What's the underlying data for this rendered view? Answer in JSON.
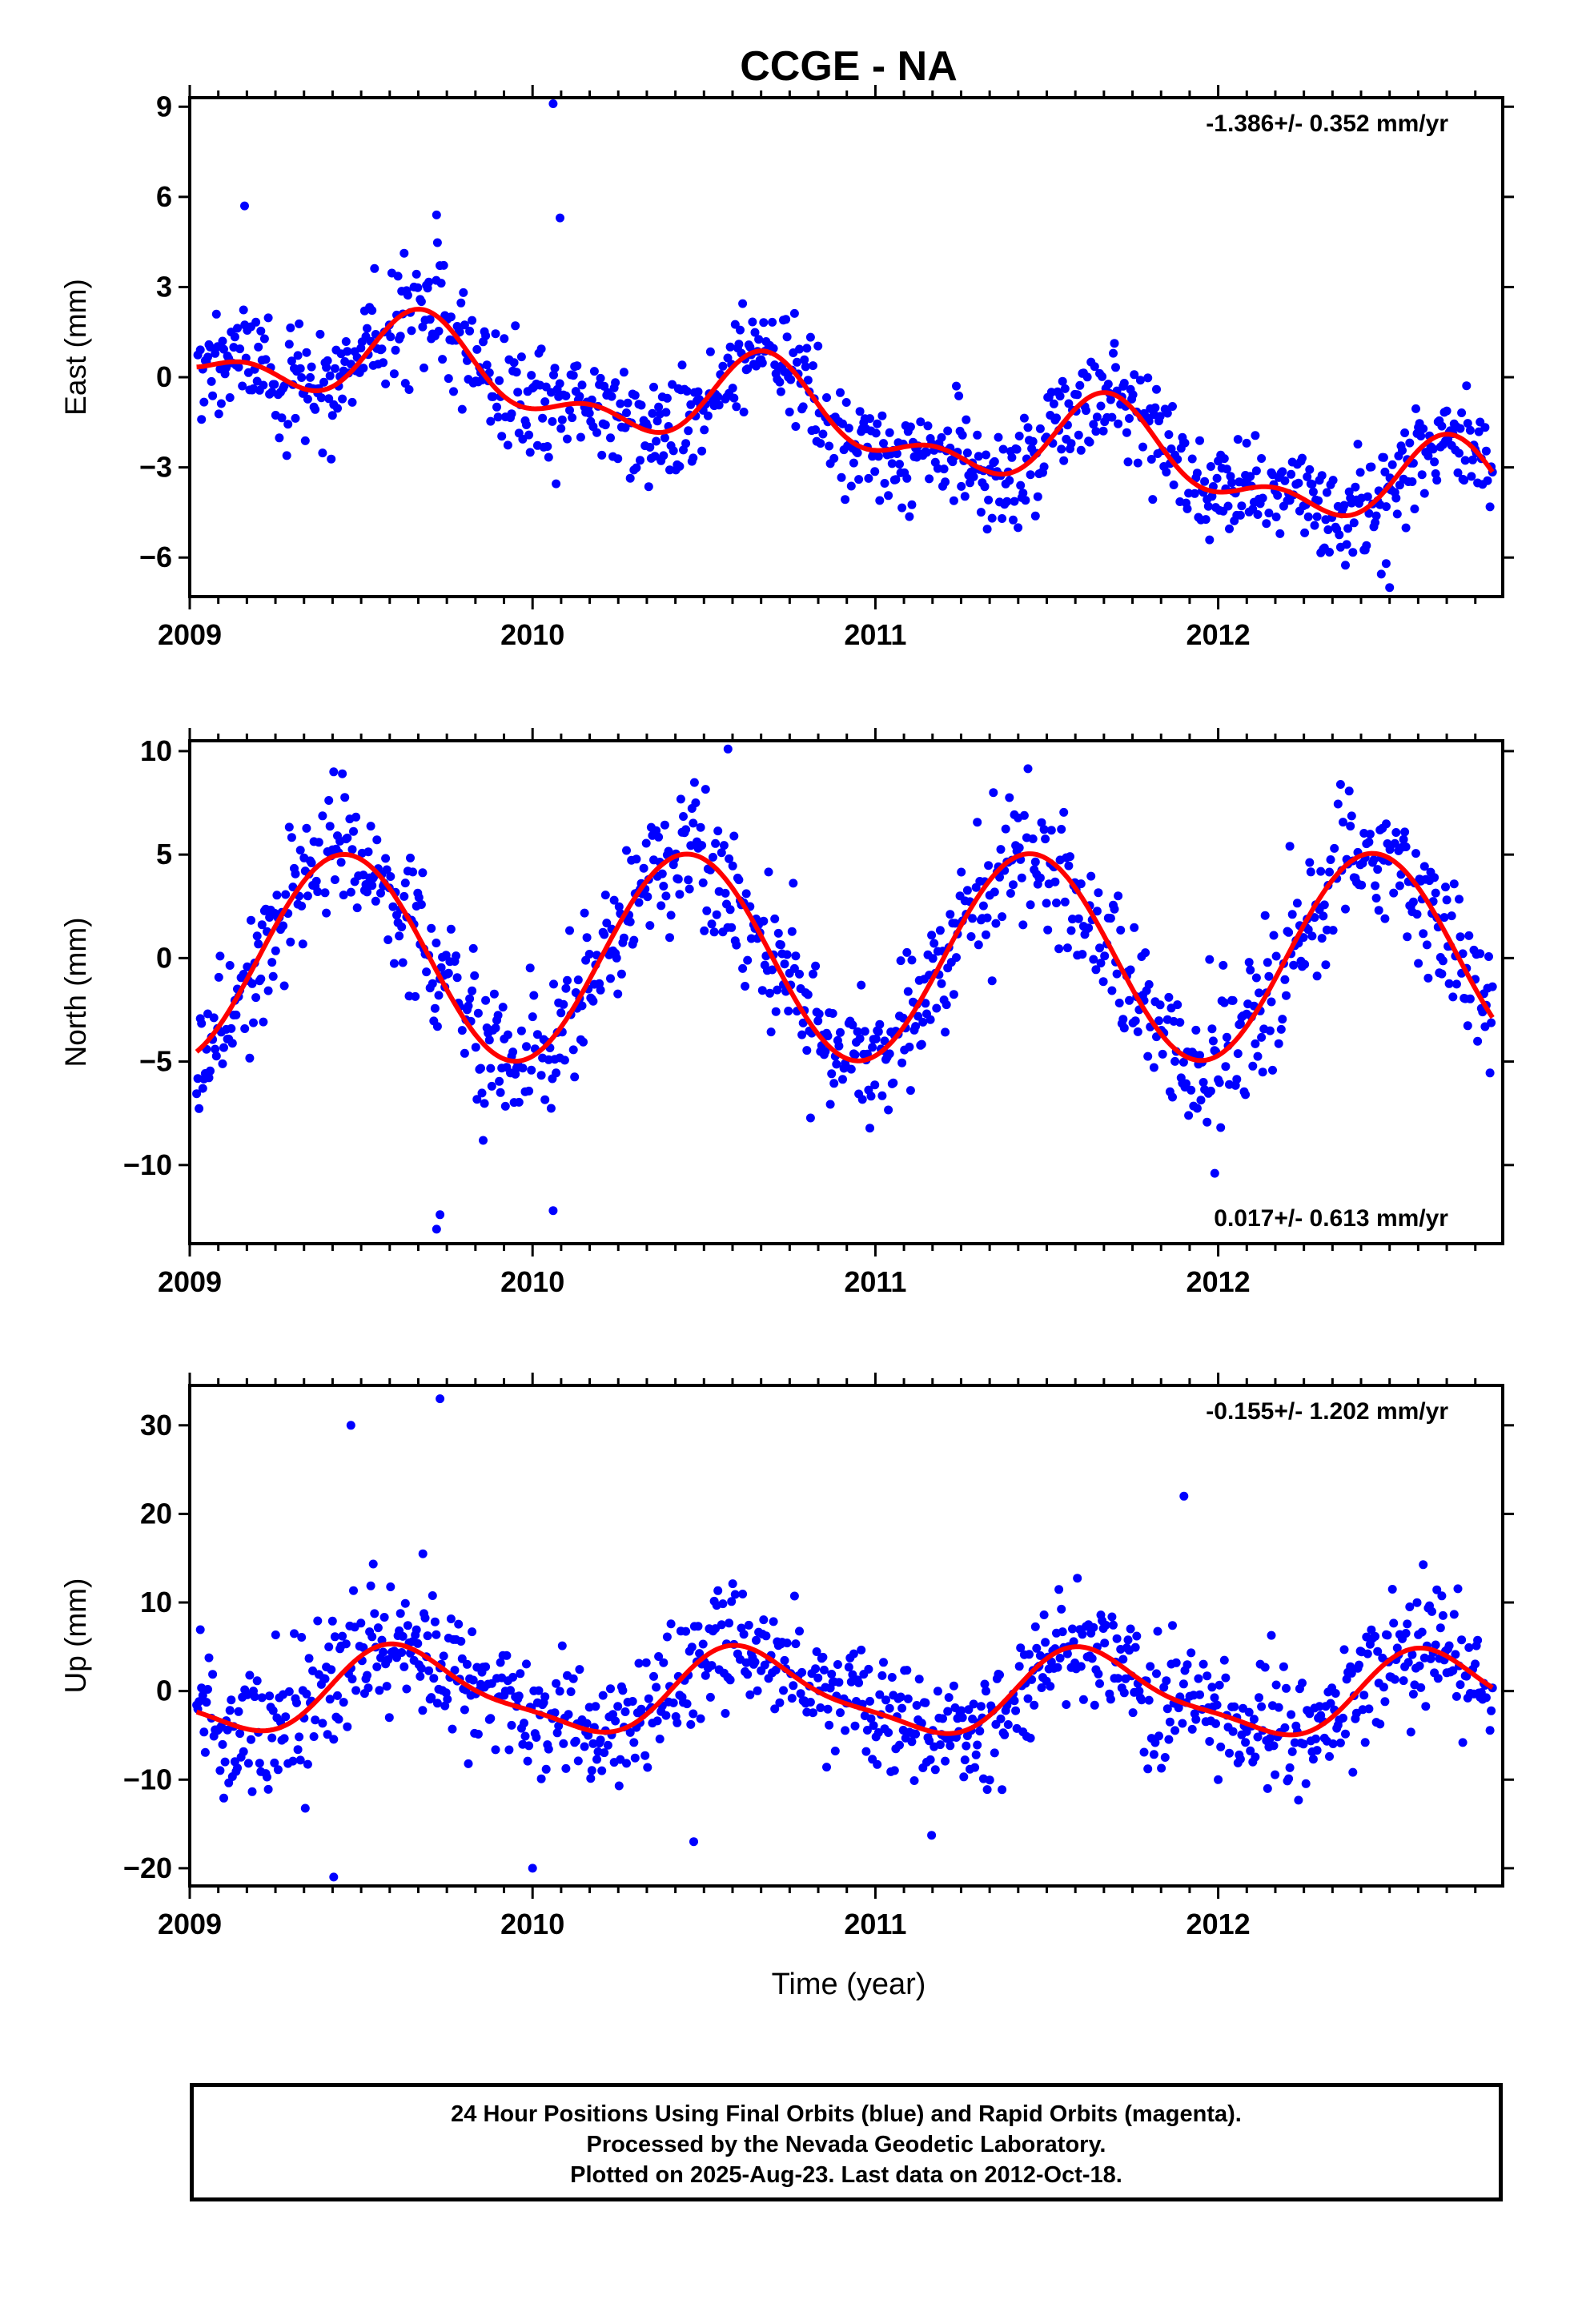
{
  "chart_data": [
    {
      "type": "scatter",
      "title": "CCGE - NA",
      "ylabel": "East (mm)",
      "xlim": [
        2009.0,
        2012.83
      ],
      "ylim": [
        -7.3,
        9.3
      ],
      "yticks": [
        -6,
        -3,
        0,
        3,
        6,
        9
      ],
      "xticks": [
        2009,
        2010,
        2011,
        2012
      ],
      "rate_label": "-1.386+/- 0.352 mm/yr",
      "rate_position": "top-right",
      "series": [
        {
          "name": "Final Orbits",
          "color": "#0000ff",
          "marker": "dot"
        },
        {
          "name": "Model fit",
          "color": "#ff0000",
          "marker": "line"
        }
      ],
      "model": {
        "t0": 2009.0,
        "offset": 1.2,
        "trend": -1.386,
        "annual_amp": 1.25,
        "annual_peak": 2009.69,
        "semiannual_amp": 0.75,
        "semiannual_peak": 2009.17,
        "noise": 0.9,
        "t_start": 2009.02,
        "t_end": 2012.8,
        "count": 1050
      },
      "outliers": [
        [
          2010.06,
          9.1
        ],
        [
          2009.16,
          5.7
        ],
        [
          2010.08,
          5.3
        ],
        [
          2012.5,
          -7.0
        ],
        [
          2012.49,
          -6.2
        ],
        [
          2009.72,
          5.4
        ]
      ]
    },
    {
      "type": "scatter",
      "ylabel": "North (mm)",
      "xlim": [
        2009.0,
        2012.83
      ],
      "ylim": [
        -13.8,
        10.5
      ],
      "yticks": [
        -10,
        -5,
        0,
        5,
        10
      ],
      "xticks": [
        2009,
        2010,
        2011,
        2012
      ],
      "rate_label": "0.017+/- 0.613 mm/yr",
      "rate_position": "bottom-right",
      "series": [
        {
          "name": "Final Orbits",
          "color": "#0000ff",
          "marker": "dot"
        },
        {
          "name": "Model fit",
          "color": "#ff0000",
          "marker": "line"
        }
      ],
      "model": {
        "t0": 2009.0,
        "offset": 0.0,
        "trend": 0.017,
        "annual_amp": 5.0,
        "annual_peak": 2009.45,
        "semiannual_amp": 0.0,
        "semiannual_peak": 2009.2,
        "noise": 1.7,
        "t_start": 2009.02,
        "t_end": 2012.8,
        "count": 1050
      },
      "outliers": [
        [
          2010.57,
          10.1
        ],
        [
          2009.72,
          -13.1
        ],
        [
          2010.06,
          -12.2
        ],
        [
          2011.99,
          -10.4
        ],
        [
          2009.73,
          -12.4
        ],
        [
          2009.42,
          9.0
        ]
      ]
    },
    {
      "type": "scatter",
      "ylabel": "Up (mm)",
      "xlabel": "Time (year)",
      "xlim": [
        2009.0,
        2012.83
      ],
      "ylim": [
        -22.0,
        34.5
      ],
      "yticks": [
        -20,
        -10,
        0,
        10,
        20,
        30
      ],
      "xticks": [
        2009,
        2010,
        2011,
        2012
      ],
      "rate_label": "-0.155+/- 1.202 mm/yr",
      "rate_position": "top-right",
      "series": [
        {
          "name": "Final Orbits",
          "color": "#0000ff",
          "marker": "dot"
        },
        {
          "name": "Model fit",
          "color": "#ff0000",
          "marker": "line"
        }
      ],
      "model": {
        "t0": 2009.0,
        "offset": 0.0,
        "trend": -0.155,
        "annual_amp": 4.5,
        "annual_peak": 2009.63,
        "semiannual_amp": 1.2,
        "semiannual_peak": 2009.05,
        "noise": 3.6,
        "t_start": 2009.02,
        "t_end": 2012.8,
        "count": 1050
      },
      "outliers": [
        [
          2009.73,
          33.0
        ],
        [
          2009.47,
          30.0
        ],
        [
          2011.9,
          22.0
        ],
        [
          2009.42,
          -21.0
        ],
        [
          2010.0,
          -20.0
        ],
        [
          2010.47,
          -17.0
        ],
        [
          2009.68,
          15.5
        ]
      ]
    }
  ],
  "footer": {
    "line1": "24 Hour Positions Using Final Orbits (blue) and Rapid Orbits (magenta).",
    "line2": "Processed by the Nevada Geodetic Laboratory.",
    "line3": "Plotted on 2025-Aug-23. Last data on 2012-Oct-18."
  }
}
